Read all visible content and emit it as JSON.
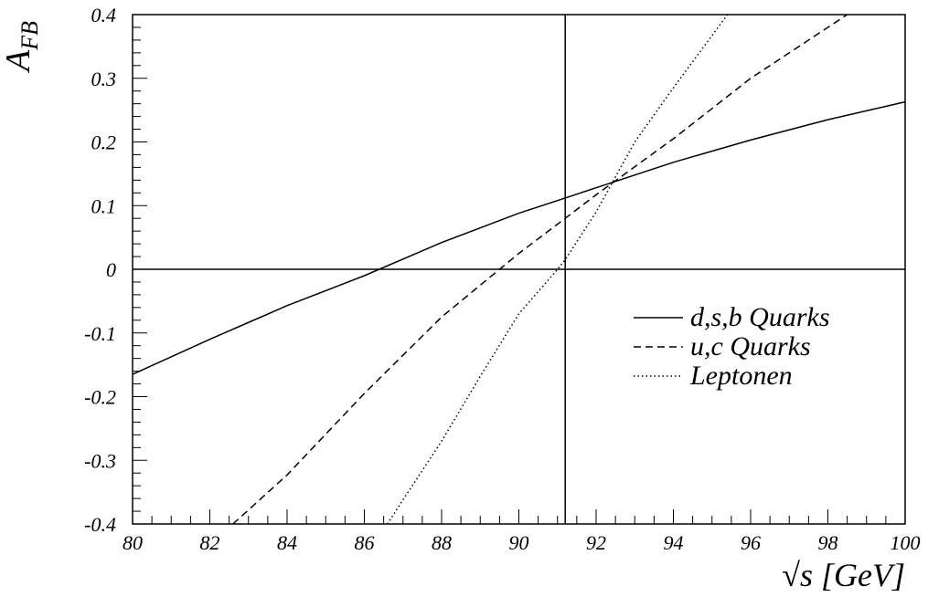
{
  "chart_data": {
    "type": "line",
    "xlabel": {
      "prefix": "√",
      "var": "s",
      "unit": " [GeV]"
    },
    "ylabel": {
      "main": "A",
      "sub": "FB"
    },
    "xlim": [
      80,
      100
    ],
    "ylim": [
      -0.4,
      0.4
    ],
    "x_ticks": [
      80,
      82,
      84,
      86,
      88,
      90,
      92,
      94,
      96,
      98,
      100
    ],
    "x_tick_labels": [
      "80",
      "82",
      "84",
      "86",
      "88",
      "90",
      "92",
      "94",
      "96",
      "98",
      "100"
    ],
    "y_ticks": [
      -0.4,
      -0.3,
      -0.2,
      -0.1,
      0,
      0.1,
      0.2,
      0.3,
      0.4
    ],
    "y_tick_labels": [
      "-0.4",
      "-0.3",
      "-0.2",
      "-0.1",
      "0",
      "0.1",
      "0.2",
      "0.3",
      "0.4"
    ],
    "grid": false,
    "legend_position": "right",
    "reference_lines": {
      "vertical_x": 91.2,
      "horizontal_y": 0
    },
    "series": [
      {
        "name": "d,s,b Quarks",
        "style": "solid",
        "x": [
          80,
          82,
          84,
          86,
          88,
          90,
          91.2,
          92,
          94,
          96,
          98,
          100
        ],
        "y": [
          -0.165,
          -0.11,
          -0.057,
          -0.01,
          0.042,
          0.088,
          0.112,
          0.128,
          0.168,
          0.203,
          0.235,
          0.263
        ]
      },
      {
        "name": "u,c Quarks",
        "style": "dashed",
        "x": [
          82.6,
          84,
          86,
          88,
          90,
          91.2,
          92,
          94,
          96,
          98.5
        ],
        "y": [
          -0.4,
          -0.323,
          -0.195,
          -0.075,
          0.025,
          0.08,
          0.117,
          0.205,
          0.3,
          0.4
        ]
      },
      {
        "name": "Leptonen",
        "style": "dotted",
        "x": [
          86.6,
          87,
          88,
          89,
          90,
          91,
          91.2,
          92,
          93,
          94,
          95.4
        ],
        "y": [
          -0.4,
          -0.362,
          -0.27,
          -0.168,
          -0.07,
          0.0,
          0.015,
          0.09,
          0.2,
          0.285,
          0.4
        ]
      }
    ]
  }
}
